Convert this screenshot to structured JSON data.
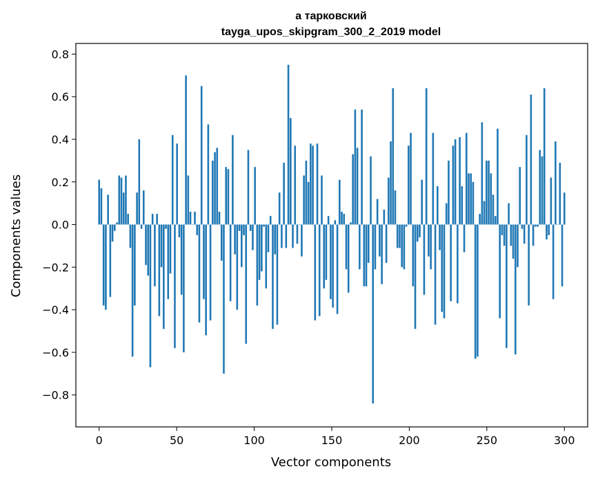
{
  "chart_data": {
    "type": "bar",
    "title": "а тарковский",
    "subtitle": "tayga_upos_skipgram_300_2_2019 model",
    "xlabel": "Vector components",
    "ylabel": "Components values",
    "xlim": [
      -15,
      315
    ],
    "ylim": [
      -0.95,
      0.85
    ],
    "xticks": [
      0,
      50,
      100,
      150,
      200,
      250,
      300
    ],
    "xtick_labels": [
      "0",
      "50",
      "100",
      "150",
      "200",
      "250",
      "300"
    ],
    "yticks": [
      -0.8,
      -0.6,
      -0.4,
      -0.2,
      0.0,
      0.2,
      0.4,
      0.6,
      0.8
    ],
    "ytick_labels": [
      "−0.8",
      "−0.6",
      "−0.4",
      "−0.2",
      "0.0",
      "0.2",
      "0.4",
      "0.6",
      "0.8"
    ],
    "bar_color": "#1f77b4",
    "values": [
      0.21,
      0.17,
      -0.38,
      -0.4,
      0.14,
      -0.34,
      -0.08,
      -0.03,
      0.01,
      0.23,
      0.22,
      0.15,
      0.23,
      0.05,
      -0.11,
      -0.62,
      -0.38,
      0.15,
      0.4,
      -0.02,
      0.16,
      -0.19,
      -0.24,
      -0.67,
      0.05,
      -0.29,
      0.05,
      -0.43,
      -0.2,
      -0.49,
      -0.02,
      -0.35,
      -0.23,
      0.42,
      -0.58,
      0.38,
      -0.06,
      -0.33,
      -0.6,
      0.7,
      0.23,
      0.06,
      0.0,
      0.06,
      -0.05,
      -0.46,
      0.65,
      -0.35,
      -0.52,
      0.47,
      -0.45,
      0.3,
      0.34,
      0.36,
      0.06,
      -0.17,
      -0.7,
      0.27,
      0.26,
      -0.36,
      0.42,
      -0.14,
      -0.4,
      -0.03,
      -0.2,
      -0.05,
      -0.56,
      0.35,
      -0.03,
      -0.12,
      0.27,
      -0.38,
      -0.26,
      -0.22,
      -0.01,
      -0.3,
      -0.13,
      0.04,
      -0.49,
      -0.14,
      -0.47,
      0.15,
      -0.11,
      0.29,
      -0.11,
      0.75,
      0.5,
      -0.11,
      0.37,
      -0.09,
      0.0,
      -0.15,
      0.23,
      0.3,
      0.2,
      0.38,
      0.37,
      -0.45,
      0.38,
      -0.43,
      0.23,
      -0.3,
      -0.26,
      0.04,
      -0.35,
      -0.39,
      0.02,
      -0.42,
      0.21,
      0.06,
      0.05,
      -0.21,
      -0.32,
      0.01,
      0.33,
      0.54,
      0.36,
      -0.21,
      0.54,
      -0.29,
      -0.29,
      -0.18,
      0.32,
      -0.84,
      -0.21,
      0.12,
      -0.15,
      -0.28,
      0.07,
      -0.18,
      0.22,
      0.39,
      0.64,
      0.16,
      -0.11,
      -0.11,
      -0.2,
      -0.21,
      -0.01,
      0.37,
      0.43,
      -0.29,
      -0.49,
      -0.08,
      -0.06,
      0.21,
      -0.33,
      0.64,
      -0.15,
      -0.21,
      0.43,
      -0.47,
      0.18,
      -0.12,
      -0.41,
      -0.44,
      0.1,
      0.3,
      -0.36,
      0.37,
      0.4,
      -0.37,
      0.41,
      0.18,
      -0.13,
      0.43,
      0.24,
      0.24,
      0.2,
      -0.63,
      -0.62,
      0.05,
      0.48,
      0.11,
      0.3,
      0.3,
      0.24,
      0.14,
      0.04,
      0.45,
      -0.44,
      -0.05,
      -0.1,
      -0.58,
      0.1,
      -0.1,
      -0.16,
      -0.61,
      -0.2,
      0.27,
      -0.02,
      -0.09,
      0.42,
      -0.38,
      0.61,
      -0.1,
      -0.01,
      -0.01,
      0.35,
      0.32,
      0.64,
      -0.07,
      -0.05,
      0.22,
      -0.35,
      0.39,
      0.0,
      0.29,
      -0.29,
      0.15
    ]
  }
}
